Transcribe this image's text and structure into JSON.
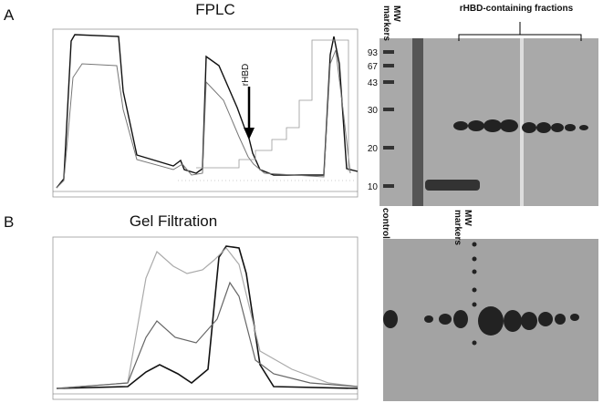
{
  "panel_a": {
    "label": "A",
    "title": "FPLC",
    "peak_label": "rHBD",
    "gel": {
      "mw_label": "MW markers",
      "fractions_label": "rHBD-containing fractions",
      "mw_values": [
        93,
        67,
        43,
        30,
        20,
        10
      ]
    }
  },
  "panel_b": {
    "label": "B",
    "title": "Gel Filtration",
    "gel": {
      "control_label": "control",
      "mw_label": "MW markers"
    }
  }
}
